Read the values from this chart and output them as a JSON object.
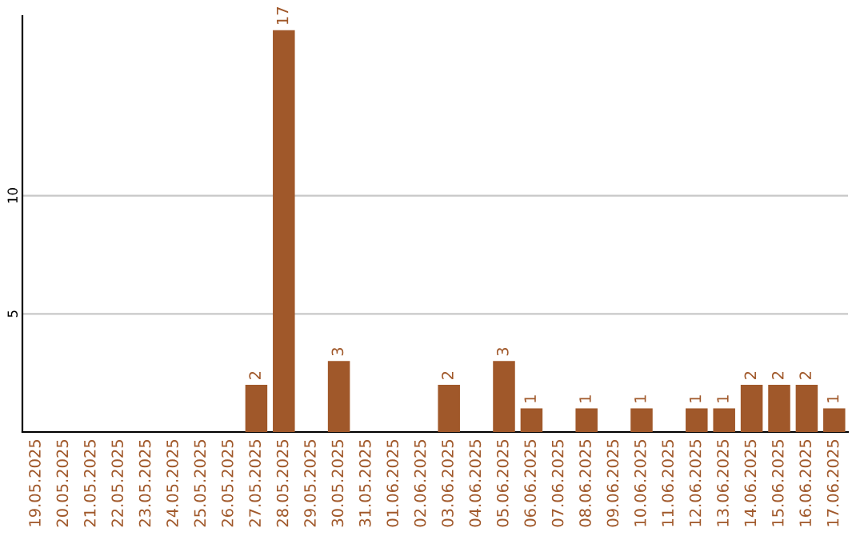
{
  "chart_data": {
    "type": "bar",
    "categories": [
      "19.05.2025",
      "20.05.2025",
      "21.05.2025",
      "22.05.2025",
      "23.05.2025",
      "24.05.2025",
      "25.05.2025",
      "26.05.2025",
      "27.05.2025",
      "28.05.2025",
      "29.05.2025",
      "30.05.2025",
      "31.05.2025",
      "01.06.2025",
      "02.06.2025",
      "03.06.2025",
      "04.06.2025",
      "05.06.2025",
      "06.06.2025",
      "07.06.2025",
      "08.06.2025",
      "09.06.2025",
      "10.06.2025",
      "11.06.2025",
      "12.06.2025",
      "13.06.2025",
      "14.06.2025",
      "15.06.2025",
      "16.06.2025",
      "17.06.2025"
    ],
    "values": [
      0,
      0,
      0,
      0,
      0,
      0,
      0,
      0,
      2,
      17,
      0,
      3,
      0,
      0,
      0,
      2,
      0,
      3,
      1,
      0,
      1,
      0,
      1,
      0,
      1,
      1,
      2,
      2,
      2,
      1
    ],
    "value_labels": [
      null,
      null,
      null,
      null,
      null,
      null,
      null,
      null,
      "2",
      "17",
      null,
      "3",
      null,
      null,
      null,
      "2",
      null,
      "3",
      "1",
      null,
      "1",
      null,
      "1",
      null,
      "1",
      "1",
      "2",
      "2",
      "2",
      "1"
    ],
    "color": "#a0582a",
    "ylim": [
      0,
      17.6
    ],
    "yticks": [
      5,
      10
    ],
    "grid": "y"
  }
}
